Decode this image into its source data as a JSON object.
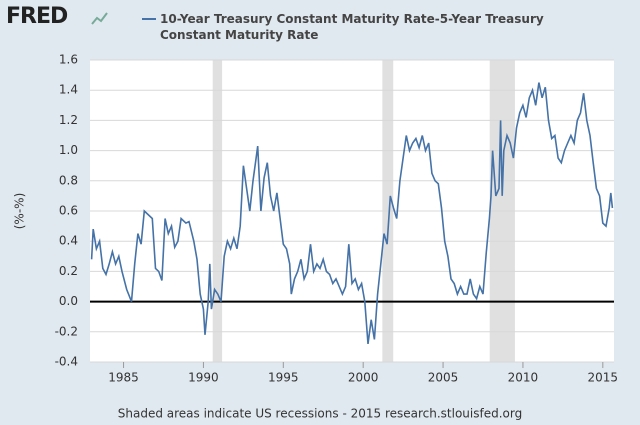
{
  "brand": "FRED",
  "chart_data": {
    "type": "line",
    "series": [
      {
        "name": "10-Year Treasury Constant Maturity Rate-5-Year Treasury Constant Maturity Rate",
        "color": "#4572a7",
        "values": [
          0.28,
          0.48,
          0.35,
          0.4,
          0.22,
          0.18,
          0.25,
          0.33,
          0.25,
          0.3,
          0.2,
          0.08,
          0.0,
          0.25,
          0.45,
          0.38,
          0.6,
          0.58,
          0.55,
          0.22,
          0.2,
          0.14,
          0.55,
          0.45,
          0.5,
          0.36,
          0.4,
          0.55,
          0.52,
          0.53,
          0.4,
          0.28,
          0.05,
          -0.05,
          -0.22,
          0.0,
          0.25,
          -0.05,
          0.08,
          0.05,
          0.0,
          0.3,
          0.4,
          0.35,
          0.42,
          0.35,
          0.5,
          0.9,
          0.75,
          0.6,
          0.8,
          0.95,
          1.03,
          0.6,
          0.82,
          0.92,
          0.7,
          0.6,
          0.72,
          0.55,
          0.38,
          0.35,
          0.25,
          0.05,
          0.15,
          0.2,
          0.28,
          0.15,
          0.2,
          0.38,
          0.2,
          0.25,
          0.22,
          0.28,
          0.2,
          0.18,
          0.12,
          0.15,
          0.1,
          0.05,
          0.1,
          0.38,
          0.12,
          0.15,
          0.08,
          0.12,
          0.0,
          -0.28,
          -0.12,
          -0.25,
          0.05,
          0.25,
          0.45,
          0.38,
          0.7,
          0.62,
          0.55,
          0.8,
          0.95,
          1.1,
          1.0,
          1.05,
          1.08,
          1.02,
          1.1,
          1.0,
          1.05,
          0.85,
          0.8,
          0.78,
          0.62,
          0.4,
          0.3,
          0.15,
          0.12,
          0.05,
          0.1,
          0.05,
          0.05,
          0.15,
          0.05,
          0.02,
          0.1,
          0.05,
          0.32,
          0.55,
          0.7,
          1.0,
          0.7,
          0.75,
          1.2,
          0.7,
          1.0,
          1.1,
          1.05,
          0.95,
          1.15,
          1.25,
          1.3,
          1.22,
          1.35,
          1.4,
          1.3,
          1.45,
          1.35,
          1.42,
          1.2,
          1.08,
          1.1,
          0.95,
          0.92,
          1.0,
          1.05,
          1.1,
          1.05,
          1.2,
          1.25,
          1.38,
          1.2,
          1.1,
          0.92,
          0.75,
          0.7,
          0.52,
          0.5,
          0.62,
          0.72,
          0.62
        ]
      }
    ],
    "x": [
      1983.0,
      1983.1,
      1983.3,
      1983.5,
      1983.7,
      1983.9,
      1984.1,
      1984.3,
      1984.5,
      1984.7,
      1984.9,
      1985.2,
      1985.5,
      1985.7,
      1985.9,
      1986.1,
      1986.3,
      1986.5,
      1986.8,
      1987.0,
      1987.2,
      1987.4,
      1987.6,
      1987.8,
      1988.0,
      1988.2,
      1988.4,
      1988.6,
      1988.9,
      1989.1,
      1989.4,
      1989.6,
      1989.8,
      1990.0,
      1990.1,
      1990.3,
      1990.4,
      1990.5,
      1990.7,
      1990.9,
      1991.1,
      1991.3,
      1991.5,
      1991.7,
      1991.9,
      1992.1,
      1992.3,
      1992.5,
      1992.7,
      1992.9,
      1993.1,
      1993.3,
      1993.4,
      1993.6,
      1993.8,
      1994.0,
      1994.2,
      1994.4,
      1994.6,
      1994.8,
      1995.0,
      1995.2,
      1995.4,
      1995.5,
      1995.7,
      1995.9,
      1996.1,
      1996.3,
      1996.5,
      1996.7,
      1996.9,
      1997.1,
      1997.3,
      1997.5,
      1997.7,
      1997.9,
      1998.1,
      1998.3,
      1998.5,
      1998.7,
      1998.9,
      1999.1,
      1999.3,
      1999.5,
      1999.7,
      1999.9,
      2000.1,
      2000.3,
      2000.5,
      2000.7,
      2000.9,
      2001.1,
      2001.3,
      2001.5,
      2001.7,
      2001.9,
      2002.1,
      2002.3,
      2002.5,
      2002.7,
      2002.9,
      2003.1,
      2003.3,
      2003.5,
      2003.7,
      2003.9,
      2004.1,
      2004.3,
      2004.5,
      2004.7,
      2004.9,
      2005.1,
      2005.3,
      2005.5,
      2005.7,
      2005.9,
      2006.1,
      2006.3,
      2006.5,
      2006.7,
      2006.9,
      2007.1,
      2007.3,
      2007.5,
      2007.7,
      2007.9,
      2008.0,
      2008.1,
      2008.3,
      2008.5,
      2008.6,
      2008.7,
      2008.8,
      2009.0,
      2009.2,
      2009.4,
      2009.6,
      2009.8,
      2010.0,
      2010.2,
      2010.4,
      2010.6,
      2010.8,
      2011.0,
      2011.2,
      2011.4,
      2011.6,
      2011.8,
      2012.0,
      2012.2,
      2012.4,
      2012.6,
      2012.8,
      2013.0,
      2013.2,
      2013.4,
      2013.6,
      2013.8,
      2014.0,
      2014.2,
      2014.4,
      2014.6,
      2014.8,
      2015.0,
      2015.2,
      2015.4,
      2015.5,
      2015.6
    ],
    "xlim": [
      1982.9,
      2015.7
    ],
    "xticks": [
      1985,
      1990,
      1995,
      2000,
      2005,
      2010,
      2015
    ],
    "ylim": [
      -0.4,
      1.6
    ],
    "yticks": [
      -0.4,
      -0.2,
      {
        "value": 0,
        "label": "0.0"
      },
      0.2,
      0.4,
      0.6,
      0.8,
      {
        "value": 1,
        "label": "1.0"
      },
      1.2,
      1.4,
      1.6
    ],
    "ylabel": "(%-%)",
    "grid": true,
    "zero_line": true,
    "recessions": [
      [
        1990.58,
        1991.17
      ],
      [
        2001.2,
        2001.88
      ],
      [
        2007.92,
        2009.5
      ]
    ],
    "footer": "Shaded areas indicate US recessions - 2015 research.stlouisfed.org"
  }
}
